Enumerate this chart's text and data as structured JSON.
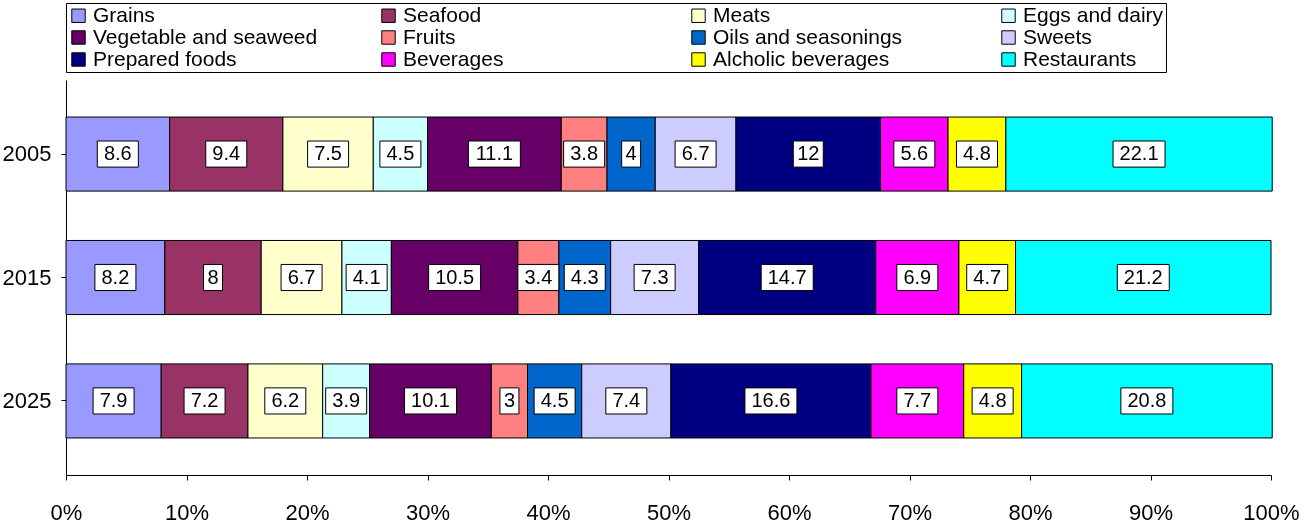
{
  "chart_data": {
    "type": "bar",
    "orientation": "horizontal",
    "stacked": true,
    "data_labels": true,
    "legend": "top",
    "grid": false,
    "categories": [
      "2005",
      "2015",
      "2025"
    ],
    "xlim": [
      0,
      100
    ],
    "xticks": [
      {
        "value": 0,
        "label": "0%"
      },
      {
        "value": 10,
        "label": "10%"
      },
      {
        "value": 20,
        "label": "20%"
      },
      {
        "value": 30,
        "label": "30%"
      },
      {
        "value": 40,
        "label": "40%"
      },
      {
        "value": 50,
        "label": "50%"
      },
      {
        "value": 60,
        "label": "60%"
      },
      {
        "value": 70,
        "label": "70%"
      },
      {
        "value": 80,
        "label": "80%"
      },
      {
        "value": 90,
        "label": "90%"
      },
      {
        "value": 100,
        "label": "100%"
      }
    ],
    "series": [
      {
        "name": "Grains",
        "color": "#9999ff",
        "values": [
          8.6,
          8.2,
          7.9
        ]
      },
      {
        "name": "Seafood",
        "color": "#993366",
        "values": [
          9.4,
          8,
          7.2
        ]
      },
      {
        "name": "Meats",
        "color": "#ffffcc",
        "values": [
          7.5,
          6.7,
          6.2
        ]
      },
      {
        "name": "Eggs and dairy",
        "color": "#ccffff",
        "values": [
          4.5,
          4.1,
          3.9
        ]
      },
      {
        "name": "Vegetable and seaweed",
        "color": "#660066",
        "values": [
          11.1,
          10.5,
          10.1
        ]
      },
      {
        "name": "Fruits",
        "color": "#ff8080",
        "values": [
          3.8,
          3.4,
          3
        ]
      },
      {
        "name": "Oils and seasonings",
        "color": "#0066cc",
        "values": [
          4,
          4.3,
          4.5
        ]
      },
      {
        "name": "Sweets",
        "color": "#ccccff",
        "values": [
          6.7,
          7.3,
          7.4
        ]
      },
      {
        "name": "Prepared foods",
        "color": "#000080",
        "values": [
          12,
          14.7,
          16.6
        ]
      },
      {
        "name": "Beverages",
        "color": "#ff00ff",
        "values": [
          5.6,
          6.9,
          7.7
        ]
      },
      {
        "name": "Alcholic beverages",
        "color": "#ffff00",
        "values": [
          4.8,
          4.7,
          4.8
        ]
      },
      {
        "name": "Restaurants",
        "color": "#00ffff",
        "values": [
          22.1,
          21.2,
          20.8
        ]
      }
    ]
  }
}
